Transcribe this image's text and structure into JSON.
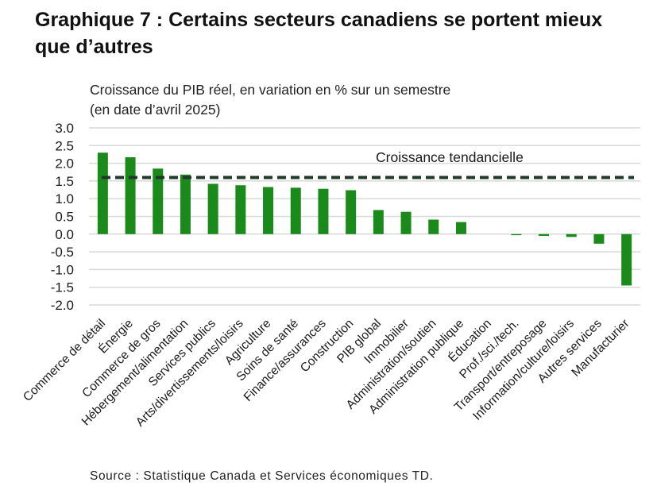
{
  "title": "Graphique 7 : Certains secteurs canadiens se portent mieux que d’autres",
  "source": "Source : Statistique Canada et Services économiques TD.",
  "colors": {
    "bar": "#1a8a1a",
    "trend": "#1f3a2a",
    "grid": "#d9d9d9"
  },
  "chart_data": {
    "type": "bar",
    "title": "Graphique 7 : Certains secteurs canadiens se portent mieux que d’autres",
    "ylabel": "Croissance du PIB réel, en variation en % sur un semestre (en date d’avril 2025)",
    "xlabel": "",
    "ylim": [
      -2.0,
      3.0
    ],
    "yticks": [
      "3.0",
      "2.5",
      "2.0",
      "1.5",
      "1.0",
      "0.5",
      "0.0",
      "-0.5",
      "-1.0",
      "-1.5",
      "-2.0"
    ],
    "ytick_values": [
      3.0,
      2.5,
      2.0,
      1.5,
      1.0,
      0.5,
      0.0,
      -0.5,
      -1.0,
      -1.5,
      -2.0
    ],
    "grid": true,
    "categories": [
      "Commerce de détail",
      "Énergie",
      "Commerce de gros",
      "Hébergement/alimentation",
      "Services publics",
      "Arts/divertissements/loisirs",
      "Agriculture",
      "Soins de santé",
      "Finance/assurances",
      "Construction",
      "PIB global",
      "Immobilier",
      "Administration/soutien",
      "Administration publique",
      "Éducation",
      "Prof./sci./tech.",
      "Transport/entreposage",
      "Information/culture/loisirs",
      "Autres services",
      "Manufacturier"
    ],
    "values": [
      2.3,
      2.17,
      1.85,
      1.68,
      1.42,
      1.38,
      1.33,
      1.31,
      1.28,
      1.24,
      0.68,
      0.63,
      0.41,
      0.34,
      0.0,
      -0.03,
      -0.05,
      -0.08,
      -0.27,
      -1.45
    ],
    "reference_line": {
      "label": "Croissance tendancielle",
      "value": 1.6
    }
  }
}
